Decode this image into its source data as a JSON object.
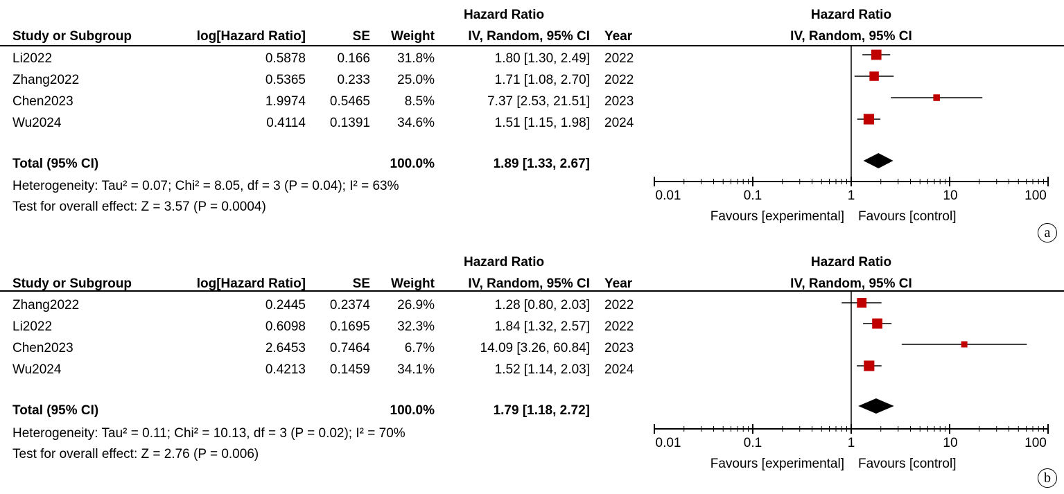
{
  "panels": [
    {
      "label": "a",
      "header": {
        "hr_group": "Hazard Ratio",
        "study": "Study or Subgroup",
        "loghr": "log[Hazard Ratio]",
        "se": "SE",
        "weight": "Weight",
        "method": "IV, Random, 95% CI",
        "year": "Year",
        "plot_title": "Hazard Ratio",
        "plot_method": "IV, Random, 95% CI"
      },
      "rows": [
        {
          "study": "Li2022",
          "loghr": "0.5878",
          "se": "0.166",
          "weight": "31.8%",
          "ci_text": "1.80 [1.30, 2.49]",
          "year": "2022"
        },
        {
          "study": "Zhang2022",
          "loghr": "0.5365",
          "se": "0.233",
          "weight": "25.0%",
          "ci_text": "1.71 [1.08, 2.70]",
          "year": "2022"
        },
        {
          "study": "Chen2023",
          "loghr": "1.9974",
          "se": "0.5465",
          "weight": "8.5%",
          "ci_text": "7.37 [2.53, 21.51]",
          "year": "2023"
        },
        {
          "study": "Wu2024",
          "loghr": "0.4114",
          "se": "0.1391",
          "weight": "34.6%",
          "ci_text": "1.51 [1.15, 1.98]",
          "year": "2024"
        }
      ],
      "total": {
        "label": "Total (95% CI)",
        "weight": "100.0%",
        "ci_text": "1.89 [1.33, 2.67]"
      },
      "heterogeneity": "Heterogeneity: Tau² = 0.07; Chi² = 8.05, df = 3 (P = 0.04); I² = 63%",
      "overall": "Test for overall effect: Z = 3.57 (P = 0.0004)",
      "axis_ticks": [
        "0.01",
        "0.1",
        "1",
        "10",
        "100"
      ],
      "favours_left": "Favours [experimental]",
      "favours_right": "Favours [control]"
    },
    {
      "label": "b",
      "header": {
        "hr_group": "Hazard Ratio",
        "study": "Study or Subgroup",
        "loghr": "log[Hazard Ratio]",
        "se": "SE",
        "weight": "Weight",
        "method": "IV, Random, 95% CI",
        "year": "Year",
        "plot_title": "Hazard Ratio",
        "plot_method": "IV, Random, 95% CI"
      },
      "rows": [
        {
          "study": "Zhang2022",
          "loghr": "0.2445",
          "se": "0.2374",
          "weight": "26.9%",
          "ci_text": "1.28 [0.80, 2.03]",
          "year": "2022"
        },
        {
          "study": "Li2022",
          "loghr": "0.6098",
          "se": "0.1695",
          "weight": "32.3%",
          "ci_text": "1.84 [1.32, 2.57]",
          "year": "2022"
        },
        {
          "study": "Chen2023",
          "loghr": "2.6453",
          "se": "0.7464",
          "weight": "6.7%",
          "ci_text": "14.09 [3.26, 60.84]",
          "year": "2023"
        },
        {
          "study": "Wu2024",
          "loghr": "0.4213",
          "se": "0.1459",
          "weight": "34.1%",
          "ci_text": "1.52 [1.14, 2.03]",
          "year": "2024"
        }
      ],
      "total": {
        "label": "Total (95% CI)",
        "weight": "100.0%",
        "ci_text": "1.79 [1.18, 2.72]"
      },
      "heterogeneity": "Heterogeneity: Tau² = 0.11; Chi² = 10.13, df = 3 (P = 0.02); I² = 70%",
      "overall": "Test for overall effect: Z = 2.76 (P = 0.006)",
      "axis_ticks": [
        "0.01",
        "0.1",
        "1",
        "10",
        "100"
      ],
      "favours_left": "Favours [experimental]",
      "favours_right": "Favours [control]"
    }
  ],
  "chart_data": [
    {
      "type": "forest",
      "x_scale": "log",
      "xlim": [
        0.01,
        100
      ],
      "x_ticks": [
        0.01,
        0.1,
        1,
        10,
        100
      ],
      "reference_line": 1,
      "colors": {
        "marker": "#c00000",
        "diamond": "#000000"
      },
      "studies": [
        {
          "name": "Li2022",
          "hr": 1.8,
          "lower": 1.3,
          "upper": 2.49,
          "weight": 31.8
        },
        {
          "name": "Zhang2022",
          "hr": 1.71,
          "lower": 1.08,
          "upper": 2.7,
          "weight": 25.0
        },
        {
          "name": "Chen2023",
          "hr": 7.37,
          "lower": 2.53,
          "upper": 21.51,
          "weight": 8.5
        },
        {
          "name": "Wu2024",
          "hr": 1.51,
          "lower": 1.15,
          "upper": 1.98,
          "weight": 34.6
        }
      ],
      "pooled": {
        "hr": 1.89,
        "lower": 1.33,
        "upper": 2.67
      }
    },
    {
      "type": "forest",
      "x_scale": "log",
      "xlim": [
        0.01,
        100
      ],
      "x_ticks": [
        0.01,
        0.1,
        1,
        10,
        100
      ],
      "reference_line": 1,
      "colors": {
        "marker": "#c00000",
        "diamond": "#000000"
      },
      "studies": [
        {
          "name": "Zhang2022",
          "hr": 1.28,
          "lower": 0.8,
          "upper": 2.03,
          "weight": 26.9
        },
        {
          "name": "Li2022",
          "hr": 1.84,
          "lower": 1.32,
          "upper": 2.57,
          "weight": 32.3
        },
        {
          "name": "Chen2023",
          "hr": 14.09,
          "lower": 3.26,
          "upper": 60.84,
          "weight": 6.7
        },
        {
          "name": "Wu2024",
          "hr": 1.52,
          "lower": 1.14,
          "upper": 2.03,
          "weight": 34.1
        }
      ],
      "pooled": {
        "hr": 1.79,
        "lower": 1.18,
        "upper": 2.72
      }
    }
  ]
}
